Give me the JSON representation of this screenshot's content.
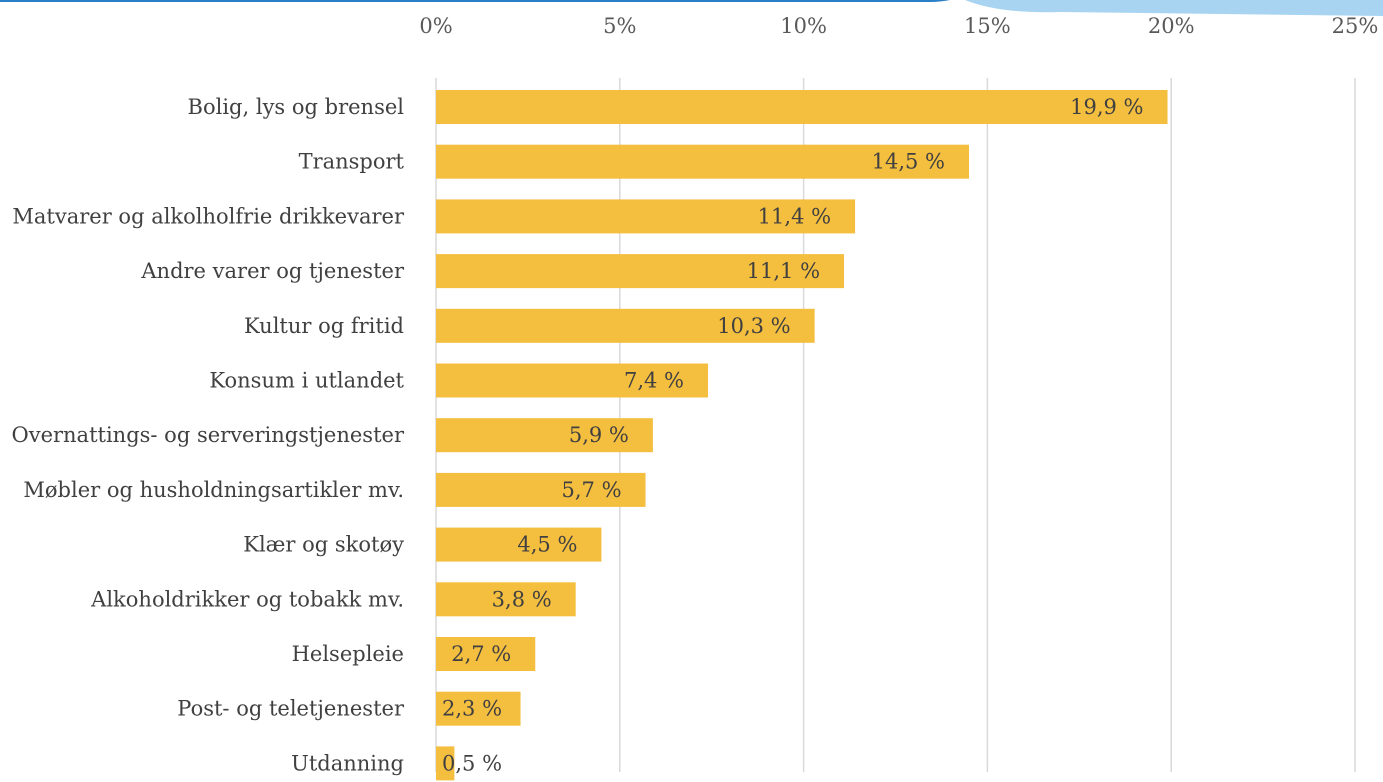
{
  "colors": {
    "bar": "#F4BE3F",
    "grid": "#D9D9D9",
    "tick_text": "#595959",
    "label_text": "#404040",
    "decor_blue": "#2A7FC8",
    "decor_light_blue": "#A8D4F2"
  },
  "chart_data": {
    "type": "bar",
    "orientation": "horizontal",
    "categories": [
      "Bolig, lys og brensel",
      "Transport",
      "Matvarer og alkolholfrie drikkevarer",
      "Andre varer og tjenester",
      "Kultur og fritid",
      "Konsum i utlandet",
      "Overnattings- og serveringstjenester",
      "Møbler og husholdningsartikler mv.",
      "Klær og skotøy",
      "Alkoholdrikker og tobakk mv.",
      "Helsepleie",
      "Post- og teletjenester",
      "Utdanning"
    ],
    "values": [
      19.9,
      14.5,
      11.4,
      11.1,
      10.3,
      7.4,
      5.9,
      5.7,
      4.5,
      3.8,
      2.7,
      2.3,
      0.5
    ],
    "value_labels": [
      "19,9 %",
      "14,5 %",
      "11,4 %",
      "11,1 %",
      "10,3 %",
      "7,4 %",
      "5,9 %",
      "5,7 %",
      "4,5 %",
      "3,8 %",
      "2,7 %",
      "2,3 %",
      "0,5 %"
    ],
    "xlim": [
      0,
      25
    ],
    "x_ticks": [
      0,
      5,
      10,
      15,
      20,
      25
    ],
    "x_tick_labels": [
      "0%",
      "5%",
      "10%",
      "15%",
      "20%",
      "25%"
    ],
    "x_axis_position": "top",
    "grid": true,
    "legend": false
  }
}
